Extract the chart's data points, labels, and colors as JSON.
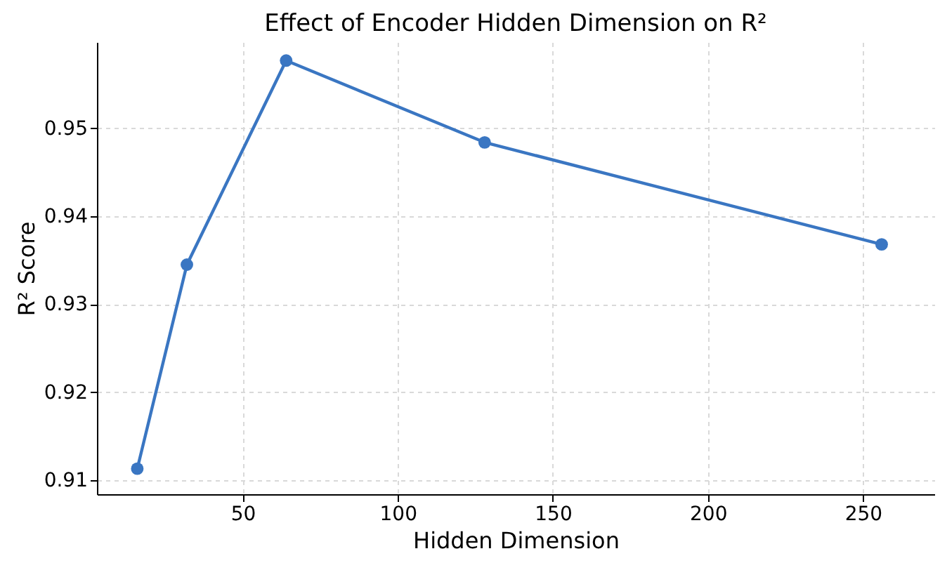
{
  "chart_data": {
    "type": "line",
    "title": "Effect of Encoder Hidden Dimension on R²",
    "xlabel": "Hidden Dimension",
    "ylabel": "R² Score",
    "x": [
      16,
      32,
      64,
      128,
      256
    ],
    "series": [
      {
        "color": "#3a76c2",
        "values": [
          0.9113,
          0.9345,
          0.9577,
          0.9484,
          0.9368
        ]
      }
    ],
    "xlim": [
      3,
      273
    ],
    "xticks": [
      50,
      100,
      150,
      200,
      250
    ],
    "ylim": [
      0.9084,
      0.9598
    ],
    "yticks": [
      0.91,
      0.92,
      0.93,
      0.94,
      0.95
    ],
    "grid": true,
    "marker": "circle",
    "line_style": "solid"
  }
}
